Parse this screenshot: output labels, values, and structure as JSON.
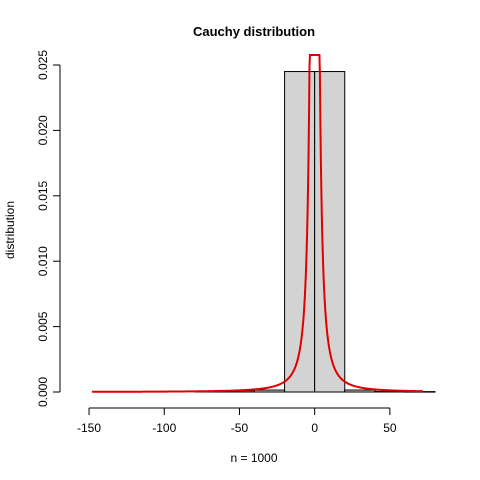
{
  "chart_data": {
    "type": "histogram",
    "title": "Cauchy distribution",
    "xlabel": "n = 1000",
    "ylabel": "distribution",
    "xlim": [
      -160,
      80
    ],
    "ylim": [
      0,
      0.025
    ],
    "x_ticks": [
      -150,
      -100,
      -50,
      0,
      50
    ],
    "y_ticks": [
      0.0,
      0.005,
      0.01,
      0.015,
      0.02,
      0.025
    ],
    "y_tick_labels": [
      "0.000",
      "0.005",
      "0.010",
      "0.015",
      "0.020",
      "0.025"
    ],
    "bins": [
      {
        "x0": -80,
        "x1": -60,
        "density": 5e-05
      },
      {
        "x0": -60,
        "x1": -40,
        "density": 0.0001
      },
      {
        "x0": -40,
        "x1": -20,
        "density": 0.00015
      },
      {
        "x0": -20,
        "x1": 0,
        "density": 0.0245
      },
      {
        "x0": 0,
        "x1": 20,
        "density": 0.0245
      },
      {
        "x0": 20,
        "x1": 40,
        "density": 0.00015
      },
      {
        "x0": 40,
        "x1": 60,
        "density": 5e-05
      },
      {
        "x0": 60,
        "x1": 80,
        "density": 3e-05
      }
    ],
    "curve": {
      "type": "cauchy-density",
      "location": 0,
      "scale": 1,
      "x_range": [
        -148,
        72
      ],
      "color": "#e00000"
    },
    "bar_fill": "#d3d3d3",
    "grid": false
  }
}
